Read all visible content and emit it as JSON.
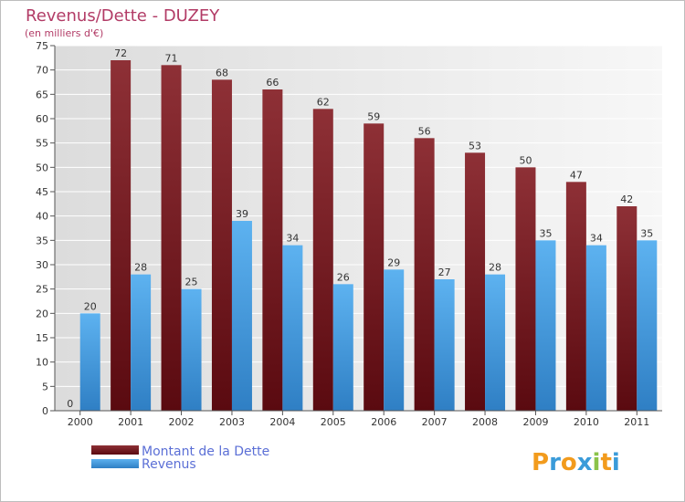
{
  "chart_data": {
    "type": "bar",
    "title": "Revenus/Dette - DUZEY",
    "subtitle": "(en milliers d'€)",
    "categories": [
      "2000",
      "2001",
      "2002",
      "2003",
      "2004",
      "2005",
      "2006",
      "2007",
      "2008",
      "2009",
      "2010",
      "2011"
    ],
    "series": [
      {
        "name": "Montant de la Dette",
        "values": [
          0,
          72,
          71,
          68,
          66,
          62,
          59,
          56,
          53,
          50,
          47,
          42
        ],
        "color": "#7a1f24"
      },
      {
        "name": "Revenus",
        "values": [
          20,
          28,
          25,
          39,
          34,
          26,
          29,
          27,
          28,
          35,
          34,
          35
        ],
        "color": "#4fa3e8"
      }
    ],
    "ylim": [
      0,
      75
    ],
    "yticks": [
      0,
      5,
      10,
      15,
      20,
      25,
      30,
      35,
      40,
      45,
      50,
      55,
      60,
      65,
      70,
      75
    ],
    "grid": true,
    "legend_position": "bottom-left"
  },
  "logo": {
    "letters": [
      "P",
      "r",
      "o",
      "x",
      "i",
      "t",
      "i"
    ],
    "colors": [
      "#f29b1d",
      "#3a9bd9",
      "#f29b1d",
      "#3a9bd9",
      "#8bc34a",
      "#f29b1d",
      "#3a9bd9"
    ]
  }
}
